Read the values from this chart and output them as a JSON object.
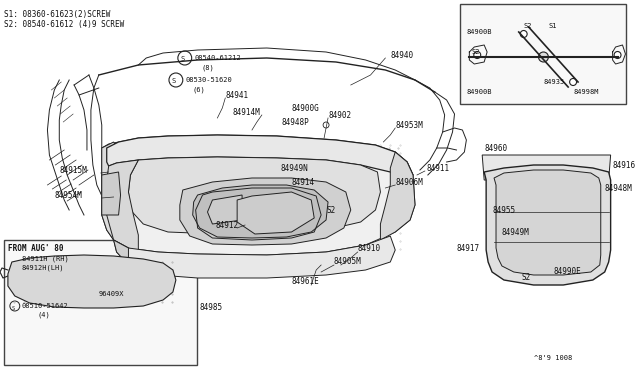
{
  "bg_color": "#ffffff",
  "line_color": "#222222",
  "diagram_number": "^8'9 1008",
  "s1_label": "S1: 08360-61623(2)SCREW",
  "s2_label": "S2: 08540-61612 (4)9 SCREW",
  "figsize": [
    6.4,
    3.72
  ],
  "dpi": 100
}
